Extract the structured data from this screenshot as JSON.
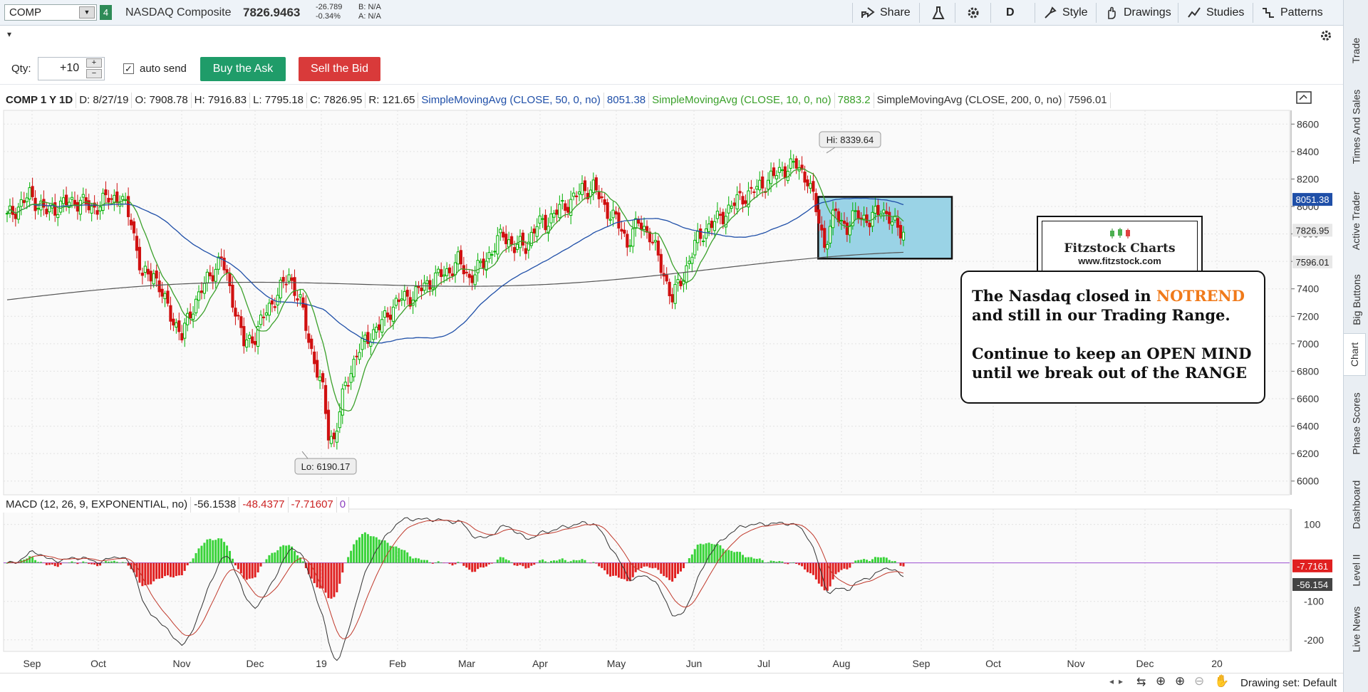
{
  "header": {
    "symbol": "COMP",
    "link_group": "4",
    "name": "NASDAQ Composite",
    "last": "7826.9463",
    "change": "-26.789",
    "change_pct": "-0.34%",
    "bid": "B: N/A",
    "ask": "A: N/A",
    "share_label": "Share",
    "aggregation": "D",
    "style_label": "Style",
    "drawings_label": "Drawings",
    "studies_label": "Studies",
    "patterns_label": "Patterns"
  },
  "side_tabs": [
    "Trade",
    "Times And Sales",
    "Active Trader",
    "Big Buttons",
    "Chart",
    "Phase Scores",
    "Dashboard",
    "Level II",
    "Live News"
  ],
  "order": {
    "qty_label": "Qty:",
    "qty_value": "+10",
    "auto_send_label": "auto send",
    "buy_label": "Buy the Ask",
    "sell_label": "Sell the Bid"
  },
  "study_header": {
    "title": "COMP 1 Y 1D",
    "date": "D: 8/27/19",
    "open": "O: 7908.78",
    "high": "H: 7916.83",
    "low": "L: 7795.18",
    "close": "C: 7826.95",
    "range": "R: 121.65",
    "sma50_label": "SimpleMovingAvg (CLOSE, 50, 0, no)",
    "sma50_value": "8051.38",
    "sma10_label": "SimpleMovingAvg (CLOSE, 10, 0, no)",
    "sma10_value": "7883.2",
    "sma200_label": "SimpleMovingAvg (CLOSE, 200, 0, no)",
    "sma200_value": "7596.01"
  },
  "macd_header": {
    "label": "MACD (12, 26, 9, EXPONENTIAL, no)",
    "value": "-56.1538",
    "avg": "-48.4377",
    "diff": "-7.71607",
    "zero": "0"
  },
  "price_axis": {
    "ticks": [
      "8600",
      "8400",
      "8200",
      "8000",
      "7800",
      "7600",
      "7400",
      "7200",
      "7000",
      "6800",
      "6600",
      "6400",
      "6200",
      "6000"
    ],
    "tag_sma50": "8051.38",
    "tag_close": "7826.95",
    "tag_sma200": "7596.01"
  },
  "macd_axis": {
    "ticks": [
      "100",
      "-100",
      "-200"
    ],
    "tag_diff": "-7.7161",
    "tag_value": "-56.154"
  },
  "time_axis": [
    "Sep",
    "Oct",
    "Nov",
    "Dec",
    "19",
    "Feb",
    "Mar",
    "Apr",
    "May",
    "Jun",
    "Jul",
    "Aug",
    "Sep",
    "Oct",
    "Nov",
    "Dec",
    "20"
  ],
  "bubbles": {
    "high": "Hi: 8339.64",
    "low": "Lo: 6190.17"
  },
  "logo": {
    "title": "Fitzstock Charts",
    "url": "www.fitzstock.com"
  },
  "note": {
    "line1_pre": "The Nasdaq closed in ",
    "line1_em": "NOTREND",
    "line2": "and still in our Trading Range.",
    "line3": "Continue to keep an OPEN MIND",
    "line4": "until we break out of the RANGE"
  },
  "bottom": {
    "drawing_set": "Drawing set: Default"
  },
  "colors": {
    "up": "#00b000",
    "down": "#d01010",
    "sma50": "#1f4fa8",
    "sma10": "#3aa02a",
    "sma200": "#555555",
    "range_box": "#9ad3e6",
    "buy": "#1f9c69",
    "sell": "#d93a3a",
    "note_emphasis": "#f07a1a"
  },
  "chart_data": {
    "type": "candlestick",
    "ylim": [
      5900,
      8700
    ],
    "macd_ylim": [
      -230,
      140
    ],
    "close_path": [
      [
        0,
        7920
      ],
      [
        8,
        8080
      ],
      [
        14,
        7960
      ],
      [
        20,
        8020
      ],
      [
        26,
        8040
      ],
      [
        30,
        7980
      ],
      [
        36,
        8060
      ],
      [
        40,
        8070
      ],
      [
        44,
        7900
      ],
      [
        48,
        7480
      ],
      [
        52,
        7520
      ],
      [
        56,
        7300
      ],
      [
        62,
        7050
      ],
      [
        66,
        7280
      ],
      [
        72,
        7500
      ],
      [
        76,
        7620
      ],
      [
        80,
        7330
      ],
      [
        84,
        7000
      ],
      [
        88,
        7060
      ],
      [
        92,
        7240
      ],
      [
        96,
        7360
      ],
      [
        100,
        7500
      ],
      [
        104,
        7300
      ],
      [
        108,
        6950
      ],
      [
        112,
        6650
      ],
      [
        114,
        6350
      ],
      [
        116,
        6300
      ],
      [
        118,
        6500
      ],
      [
        120,
        6700
      ],
      [
        124,
        6920
      ],
      [
        128,
        7050
      ],
      [
        132,
        7120
      ],
      [
        136,
        7250
      ],
      [
        140,
        7330
      ],
      [
        144,
        7350
      ],
      [
        148,
        7420
      ],
      [
        152,
        7480
      ],
      [
        156,
        7520
      ],
      [
        160,
        7600
      ],
      [
        164,
        7480
      ],
      [
        168,
        7560
      ],
      [
        172,
        7680
      ],
      [
        176,
        7800
      ],
      [
        180,
        7700
      ],
      [
        184,
        7720
      ],
      [
        188,
        7860
      ],
      [
        192,
        7900
      ],
      [
        196,
        7980
      ],
      [
        200,
        8040
      ],
      [
        204,
        8120
      ],
      [
        208,
        8140
      ],
      [
        212,
        8000
      ],
      [
        216,
        7900
      ],
      [
        220,
        7740
      ],
      [
        224,
        7880
      ],
      [
        228,
        7800
      ],
      [
        232,
        7560
      ],
      [
        236,
        7330
      ],
      [
        240,
        7500
      ],
      [
        244,
        7720
      ],
      [
        248,
        7840
      ],
      [
        252,
        7900
      ],
      [
        256,
        7980
      ],
      [
        260,
        8060
      ],
      [
        264,
        8100
      ],
      [
        268,
        8160
      ],
      [
        272,
        8220
      ],
      [
        276,
        8280
      ],
      [
        280,
        8300
      ],
      [
        284,
        8200
      ],
      [
        288,
        7900
      ],
      [
        290,
        7720
      ],
      [
        294,
        7960
      ],
      [
        298,
        7840
      ],
      [
        302,
        7960
      ],
      [
        306,
        7880
      ],
      [
        310,
        8000
      ],
      [
        314,
        7870
      ],
      [
        318,
        7830
      ]
    ]
  }
}
